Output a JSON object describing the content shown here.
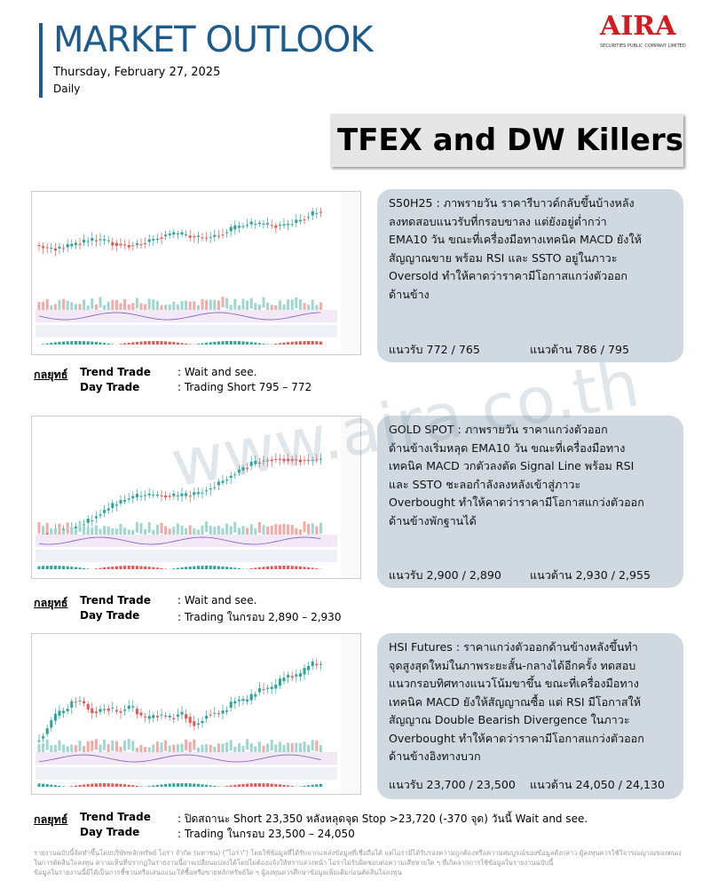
{
  "header": {
    "title": "MARKET OUTLOOK",
    "date": "Thursday, February 27, 2025",
    "frequency": "Daily",
    "logo": "AIRA",
    "logo_sub": "SECURITIES PUBLIC COMPANY LIMITED"
  },
  "section_title": "TFEX and DW Killers",
  "watermark": "www.aira.co.th",
  "panels": [
    {
      "text_lines": [
        "S50H25 :  ภาพรายวัน ราคารีบาวด์กลับขึ้นบ้างหลัง",
        "ลงทดสอบแนวรับที่กรอบขาลง แต่ยังอยู่ต่ำกว่า",
        "EMA10 วัน ขณะที่เครื่องมือทางเทคนิค MACD ยังให้",
        "สัญญาณขาย พร้อม RSI และ SSTO อยู่ในภาวะ",
        "Oversold ทำให้คาดว่าราคามีโอกาสแกว่งตัวออก",
        "ด้านข้าง"
      ],
      "support": "แนวรับ   772 / 765",
      "resistance": "แนวต้าน 786 / 795",
      "strategy": {
        "label": "กลยุทธ์",
        "trend_label": "Trend Trade",
        "trend_value": ": Wait and see.",
        "day_label": "Day Trade",
        "day_value": ": Trading Short 795 – 772"
      }
    },
    {
      "text_lines": [
        "GOLD SPOT :  ภาพรายวัน ราคาแกว่งตัวออก",
        "ด้านข้างเริ่มหลุด EMA10 วัน ขณะที่เครื่องมือทาง",
        "เทคนิค MACD วกตัวลงตัด Signal Line พร้อม RSI",
        "และ SSTO ชะลอกำลังลงหลังเข้าสู่ภาวะ",
        "Overbought ทำให้คาดว่าราคามีโอกาสแกว่งตัวออก",
        "ด้านข้างพักฐานได้"
      ],
      "support": "แนวรับ   2,900 / 2,890",
      "resistance": "แนวต้าน 2,930 / 2,955",
      "strategy": {
        "label": "กลยุทธ์",
        "trend_label": "Trend Trade",
        "trend_value": ": Wait and see.",
        "day_label": "Day Trade",
        "day_value": ": Trading ในกรอบ 2,890 – 2,930"
      }
    },
    {
      "text_lines": [
        "HSI Futures : ราคาแกว่งตัวออกด้านข้างหลังขึ้นทำ",
        "จุดสูงสุดใหม่ในภาพระยะสั้น-กลางได้อีกครั้ง ทดสอบ",
        "แนวกรอบทิศทางแนวโน้มขาขึ้น ขณะที่เครื่องมือทาง",
        "เทคนิค MACD ยังให้สัญญาณซื้อ แต่ RSI มีโอกาสให้",
        "สัญญาณ Double Bearish Divergence ในภาวะ",
        "Overbought ทำให้คาดว่าราคามีโอกาสแกว่งตัวออก",
        "ด้านข้างอิงทางบวก"
      ],
      "support": "แนวรับ 23,700 / 23,500",
      "resistance": "แนวต้าน 24,050 / 24,130",
      "strategy": {
        "label": "กลยุทธ์",
        "trend_label": "Trend Trade",
        "trend_value": ": ปิดสถานะ Short 23,350 หลังหลุดจุด Stop >23,720 (-370 จุด) วันนี้ Wait and see.",
        "day_label": "Day Trade",
        "day_value": ": Trading ในกรอบ 23,500 – 24,050"
      }
    }
  ],
  "disclaimer": [
    "รายงานฉบับนี้จัดทำขึ้นโดยบริษัทหลักทรัพย์ ไอร่า จำกัด (มหาชน) (\"ไอร่า\") โดยใช้ข้อมูลที่ได้รับจากแหล่งข้อมูลที่เชื่อถือได้ แต่ไอร่ามิได้รับรองความถูกต้องหรือความสมบูรณ์ของข้อมูลดังกล่าว ผู้ลงทุนควรใช้วิจารณญาณของตนเอง",
    "ในการตัดสินใจลงทุน ความเห็นที่ปรากฏในรายงานนี้อาจเปลี่ยนแปลงได้โดยไม่ต้องแจ้งให้ทราบล่วงหน้า ไอร่าไม่รับผิดชอบต่อความเสียหายใด ๆ ที่เกิดจากการใช้ข้อมูลในรายงานฉบับนี้",
    "ข้อมูลในรายงานนี้มิได้เป็นการชี้ชวนหรือเสนอแนะให้ซื้อหรือขายหลักทรัพย์ใด ๆ ผู้ลงทุนควรศึกษาข้อมูลเพิ่มเติมก่อนตัดสินใจลงทุน"
  ]
}
